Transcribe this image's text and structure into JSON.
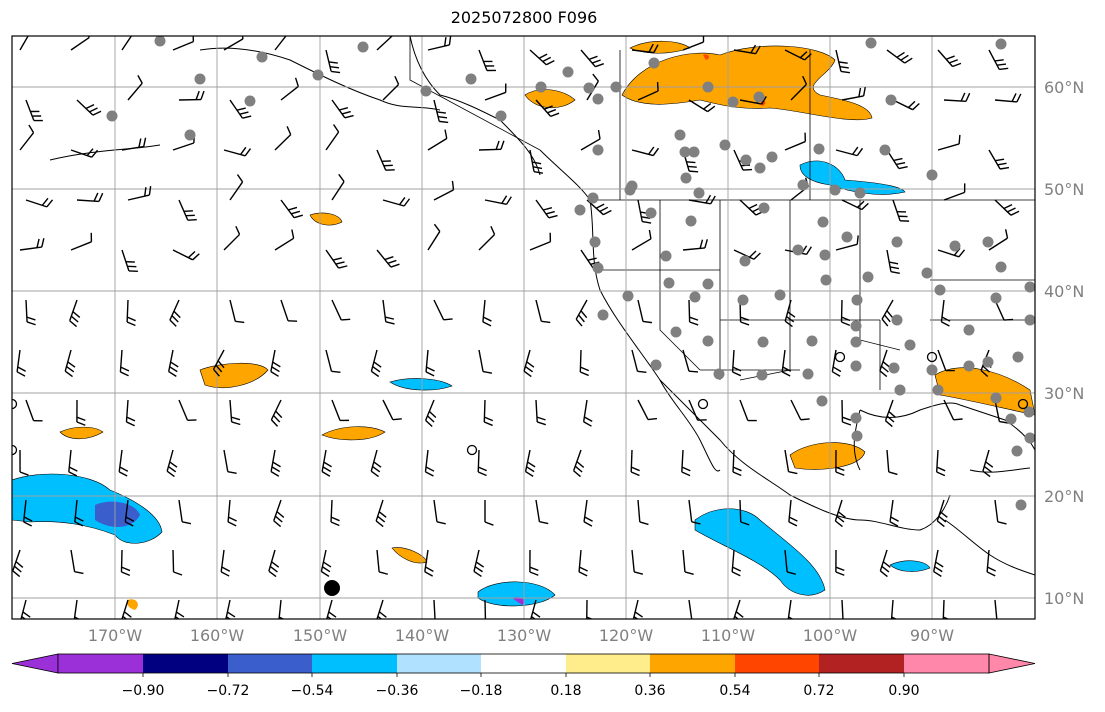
{
  "title": "2025072800 F096",
  "lat_labels": [
    "60°N",
    "50°N",
    "40°N",
    "30°N",
    "20°N",
    "10°N"
  ],
  "lon_labels": [
    "170°W",
    "160°W",
    "150°W",
    "140°W",
    "130°W",
    "120°W",
    "110°W",
    "100°W",
    "90°W"
  ],
  "colorbar": {
    "labels": [
      "−0.90",
      "−0.72",
      "−0.54",
      "−0.36",
      "−0.18",
      "0.18",
      "0.36",
      "0.54",
      "0.72",
      "0.90"
    ],
    "colors": [
      "#9b30d9",
      "#000080",
      "#3a5fcd",
      "#00bfff",
      "#b0e2ff",
      "#ffffff",
      "#ffec8b",
      "#ffa500",
      "#ff4500",
      "#b22222",
      "#ff88aa"
    ]
  },
  "map": {
    "extent_lon": [
      -180,
      -80
    ],
    "extent_lat": [
      8,
      65
    ],
    "grid": true,
    "station_color": "#808080",
    "coast_color": "#000000"
  }
}
